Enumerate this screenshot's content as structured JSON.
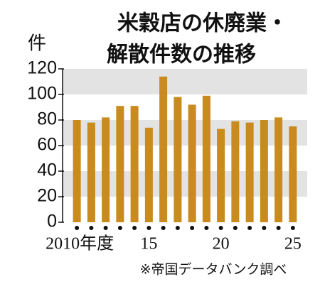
{
  "chart_data": {
    "type": "bar",
    "title": [
      "米穀店の休廃業・",
      "解散件数の推移"
    ],
    "y_label": "件",
    "note": "※帝国データバンク調べ",
    "categories": [
      "2010年度",
      null,
      null,
      null,
      null,
      "15",
      null,
      null,
      null,
      null,
      "20",
      null,
      null,
      null,
      null,
      "25"
    ],
    "values": [
      80,
      78,
      82,
      91,
      91,
      74,
      114,
      98,
      92,
      99,
      73,
      79,
      78,
      80,
      82,
      75
    ],
    "color": "#c98a1e",
    "ylim": [
      0,
      120
    ],
    "yticks": [
      0,
      20,
      40,
      60,
      80,
      100,
      120
    ],
    "grid": "bands",
    "band_color": "#e3e3e3"
  }
}
